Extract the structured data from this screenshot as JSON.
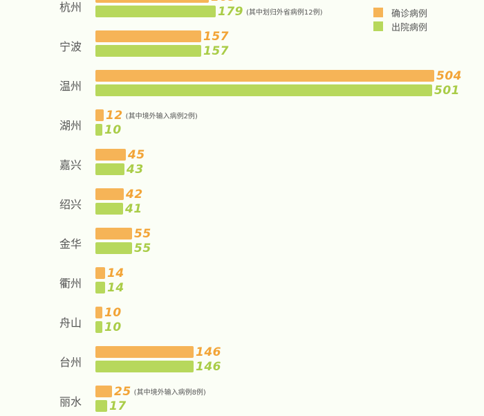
{
  "chart_data": {
    "type": "bar",
    "orientation": "horizontal",
    "title": "",
    "xlabel": "",
    "ylabel": "",
    "categories": [
      "杭州",
      "宁波",
      "温州",
      "湖州",
      "嘉兴",
      "绍兴",
      "金华",
      "衢州",
      "舟山",
      "台州",
      "丽水"
    ],
    "series": [
      {
        "name": "确诊病例",
        "color": "#f6b457",
        "values": [
          169,
          157,
          504,
          12,
          45,
          42,
          55,
          14,
          10,
          146,
          25
        ]
      },
      {
        "name": "出院病例",
        "color": "#b7d85c",
        "values": [
          179,
          157,
          501,
          10,
          43,
          41,
          55,
          14,
          10,
          146,
          17
        ]
      }
    ],
    "annotations": [
      {
        "category": "杭州",
        "series": "出院病例",
        "text": "(其中划归外省病例12例)"
      },
      {
        "category": "湖州",
        "series": "确诊病例",
        "text": "(其中境外输入病例2例)"
      },
      {
        "category": "丽水",
        "series": "确诊病例",
        "text": "(其中境外输入病例8例)"
      }
    ],
    "legend_position": "top-right",
    "grid": false
  },
  "legend": {
    "items": [
      {
        "label": "确诊病例",
        "color": "#f6b457"
      },
      {
        "label": "出院病例",
        "color": "#b7d85c"
      }
    ]
  },
  "rows": [
    {
      "city": "杭州",
      "confirmed": "169",
      "discharged": "179",
      "confirmed_note": "",
      "discharged_note": "(其中划归外省病例12例)"
    },
    {
      "city": "宁波",
      "confirmed": "157",
      "discharged": "157",
      "confirmed_note": "",
      "discharged_note": ""
    },
    {
      "city": "温州",
      "confirmed": "504",
      "discharged": "501",
      "confirmed_note": "",
      "discharged_note": ""
    },
    {
      "city": "湖州",
      "confirmed": "12",
      "discharged": "10",
      "confirmed_note": "(其中境外输入病例2例)",
      "discharged_note": ""
    },
    {
      "city": "嘉兴",
      "confirmed": "45",
      "discharged": "43",
      "confirmed_note": "",
      "discharged_note": ""
    },
    {
      "city": "绍兴",
      "confirmed": "42",
      "discharged": "41",
      "confirmed_note": "",
      "discharged_note": ""
    },
    {
      "city": "金华",
      "confirmed": "55",
      "discharged": "55",
      "confirmed_note": "",
      "discharged_note": ""
    },
    {
      "city": "衢州",
      "confirmed": "14",
      "discharged": "14",
      "confirmed_note": "",
      "discharged_note": ""
    },
    {
      "city": "舟山",
      "confirmed": "10",
      "discharged": "10",
      "confirmed_note": "",
      "discharged_note": ""
    },
    {
      "city": "台州",
      "confirmed": "146",
      "discharged": "146",
      "confirmed_note": "",
      "discharged_note": ""
    },
    {
      "city": "丽水",
      "confirmed": "25",
      "discharged": "17",
      "confirmed_note": "(其中境外输入病例8例)",
      "discharged_note": ""
    }
  ]
}
